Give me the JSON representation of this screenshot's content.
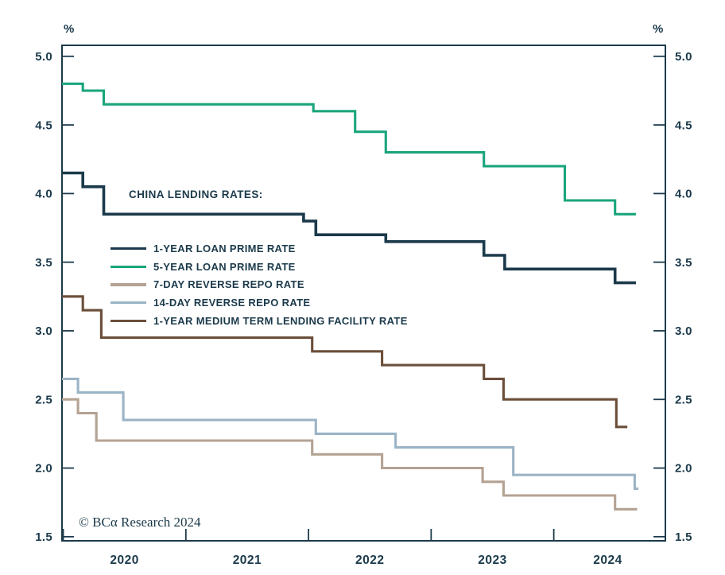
{
  "watermark": "© BCα Research 2024",
  "chart_data": {
    "type": "line",
    "step": true,
    "title": "CHINA LENDING RATES:",
    "unit_left": "%",
    "unit_right": "%",
    "grid": false,
    "legend_position": "upper-left-inside",
    "axis_color": "#1b3a4b",
    "xlim": [
      2019.99,
      2024.91
    ],
    "ylim": [
      1.47,
      5.08
    ],
    "yticks": [
      5.0,
      4.5,
      4.0,
      3.5,
      3.0,
      2.5,
      2.0,
      1.5
    ],
    "year_ticks": [
      2020,
      2021,
      2022,
      2023,
      2024
    ],
    "year_labels": [
      {
        "text": "2020",
        "t": 2020.5
      },
      {
        "text": "2021",
        "t": 2021.5
      },
      {
        "text": "2022",
        "t": 2022.5
      },
      {
        "text": "2023",
        "t": 2023.5
      },
      {
        "text": "2024",
        "t": 2024.44
      }
    ],
    "series": [
      {
        "name": "1-YEAR LOAN PRIME RATE",
        "color": "#1b3a4b",
        "points": [
          [
            2019.99,
            4.15
          ],
          [
            2020.16,
            4.05
          ],
          [
            2020.33,
            3.85
          ],
          [
            2021.96,
            3.8
          ],
          [
            2022.06,
            3.7
          ],
          [
            2022.63,
            3.65
          ],
          [
            2023.43,
            3.55
          ],
          [
            2023.6,
            3.45
          ],
          [
            2024.5,
            3.35
          ]
        ],
        "end_t": 2024.67
      },
      {
        "name": "5-YEAR LOAN PRIME RATE",
        "color": "#1aa57c",
        "points": [
          [
            2019.99,
            4.8
          ],
          [
            2020.16,
            4.75
          ],
          [
            2020.33,
            4.65
          ],
          [
            2022.04,
            4.6
          ],
          [
            2022.38,
            4.45
          ],
          [
            2022.63,
            4.3
          ],
          [
            2023.43,
            4.2
          ],
          [
            2024.09,
            3.95
          ],
          [
            2024.5,
            3.85
          ]
        ],
        "end_t": 2024.67
      },
      {
        "name": "7-DAY REVERSE REPO RATE",
        "color": "#b4a293",
        "points": [
          [
            2019.99,
            2.5
          ],
          [
            2020.12,
            2.4
          ],
          [
            2020.27,
            2.2
          ],
          [
            2022.03,
            2.1
          ],
          [
            2022.6,
            2.0
          ],
          [
            2023.42,
            1.9
          ],
          [
            2023.59,
            1.8
          ],
          [
            2024.5,
            1.7
          ]
        ],
        "end_t": 2024.68
      },
      {
        "name": "14-DAY REVERSE REPO RATE",
        "color": "#9bb4c6",
        "points": [
          [
            2019.99,
            2.65
          ],
          [
            2020.12,
            2.55
          ],
          [
            2020.49,
            2.35
          ],
          [
            2022.06,
            2.25
          ],
          [
            2022.71,
            2.15
          ],
          [
            2023.67,
            1.95
          ],
          [
            2024.66,
            1.85
          ]
        ],
        "end_t": 2024.69
      },
      {
        "name": "1-YEAR MEDIUM TERM LENDING FACILITY RATE",
        "color": "#6b4e3a",
        "points": [
          [
            2019.99,
            3.25
          ],
          [
            2020.16,
            3.15
          ],
          [
            2020.31,
            2.95
          ],
          [
            2022.03,
            2.85
          ],
          [
            2022.6,
            2.75
          ],
          [
            2023.43,
            2.65
          ],
          [
            2023.59,
            2.5
          ],
          [
            2024.51,
            2.3
          ]
        ],
        "end_t": 2024.6
      }
    ]
  }
}
